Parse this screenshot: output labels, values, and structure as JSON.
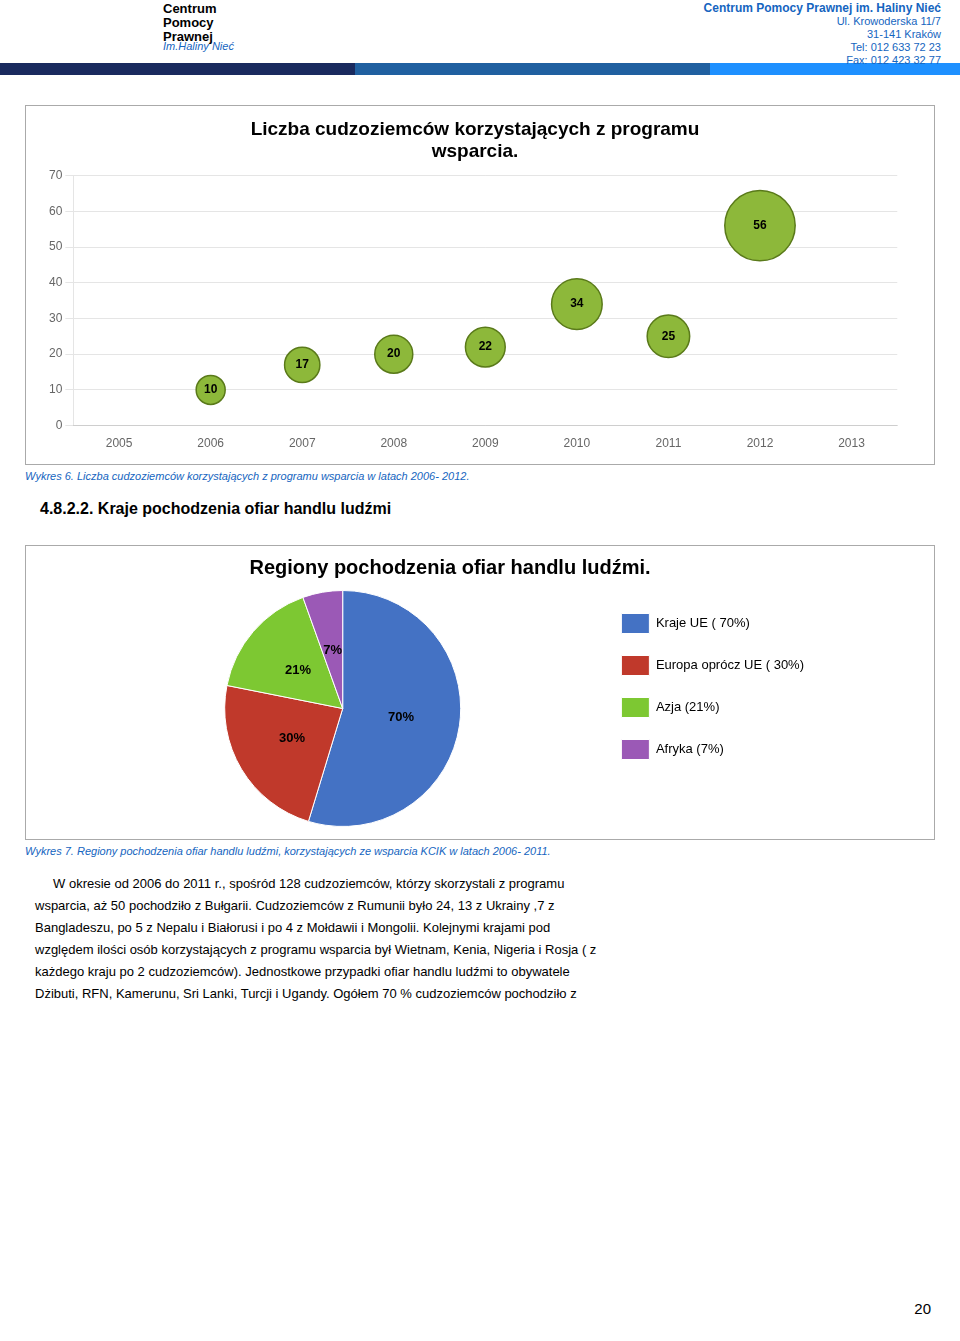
{
  "chart_data": [
    {
      "type": "bubble",
      "title": [
        "Liczba cudzoziemców korzystających z programu",
        "wsparcia."
      ],
      "x": [
        2006,
        2007,
        2008,
        2009,
        2010,
        2011,
        2012
      ],
      "values": [
        10,
        17,
        20,
        22,
        34,
        25,
        56
      ],
      "color": "#8db83a",
      "xlim": [
        2004.5,
        2013.5
      ],
      "xticks": [
        2005,
        2006,
        2007,
        2008,
        2009,
        2010,
        2011,
        2012,
        2013
      ],
      "ylim": [
        0,
        70
      ],
      "yticks": [
        0,
        10,
        20,
        30,
        40,
        50,
        60,
        70
      ],
      "grid": "y",
      "data_labels": true,
      "annotations": [
        "Centrum Pomocy Prawnej im. Haliny Nieć",
        "Ul. Krowoderska 11/7",
        "31-141 Kraków",
        "Tel: 012 633 72 23",
        "Fax: 012 423 32 77",
        "Centrum\nPomocy\nPrawnej",
        "Im.Haliny Nieć",
        "Wykres 6. Liczba cudzoziemców korzystających z programu wsparcia w latach 2006- 2012.",
        "4.8.2.2. Kraje pochodzenia ofiar handlu ludźmi"
      ]
    },
    {
      "type": "pie",
      "title": "Regiony pochodzenia ofiar handlu ludźmi.",
      "categories": [
        "Kraje UE ( 70%)",
        "Europa oprócz UE ( 30%)",
        "Azja (21%)",
        "Afryka (7%)"
      ],
      "values": [
        70,
        30,
        21,
        7
      ],
      "value_labels": [
        "70%",
        "30%",
        "21%",
        "7%"
      ],
      "colors": [
        "#4472c4",
        "#c0392b",
        "#7dc832",
        "#9b59b6"
      ],
      "data_labels": true,
      "legend": "right",
      "annotations": [
        "Wykres 7. Regiony pochodzenia ofiar handlu ludźmi, korzystających ze wsparcia KCIK w latach 2006- 2011.",
        "     W okresie od 2006 do 2011 r., spośród 128 cudzoziemców, którzy skorzystali z programu",
        "wsparcia, aż 50 pochodziło z Bułgarii. Cudzoziemców z Rumunii było 24, 13 z Ukrainy ,7 z",
        "Bangladeszu, po 5 z Nepalu i Białorusi i po 4 z Mołdawii i Mongolii. Kolejnymi krajami pod",
        "względem ilości osób korzystających z programu wsparcia był Wietnam, Kenia, Nigeria i Rosja ( z",
        "każdego kraju po 2 cudzoziemców). Jednostkowe przypadki ofiar handlu ludźmi to obywatele",
        "Dżibuti, RFN, Kamerunu, Sri Lanki, Turcji i Ugandy. Ogółem 70 % cudzoziemców pochodziło z",
        "20"
      ]
    }
  ]
}
